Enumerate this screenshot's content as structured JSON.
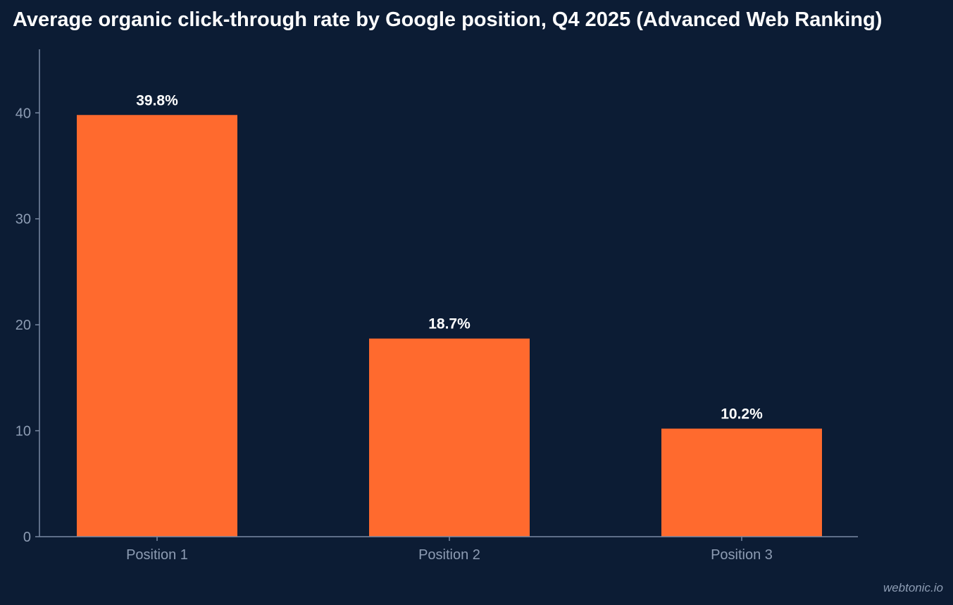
{
  "watermark": "webtonic.io",
  "colors": {
    "background": "#0c1c34",
    "bar": "#ff6a2e",
    "axis": "#7a8aa3",
    "tick_text": "#8d9cb3",
    "label_text": "#ffffff"
  },
  "chart_data": {
    "type": "bar",
    "title": "Average organic click-through rate by Google position, Q4 2025 (Advanced Web Ranking)",
    "xlabel": "",
    "ylabel": "",
    "categories": [
      "Position 1",
      "Position 2",
      "Position 3"
    ],
    "values": [
      39.8,
      18.7,
      10.2
    ],
    "data_labels": [
      "39.8%",
      "18.7%",
      "10.2%"
    ],
    "ylim": [
      0,
      46
    ],
    "yticks": [
      0,
      10,
      20,
      30,
      40
    ],
    "grid": false,
    "legend": "none"
  }
}
